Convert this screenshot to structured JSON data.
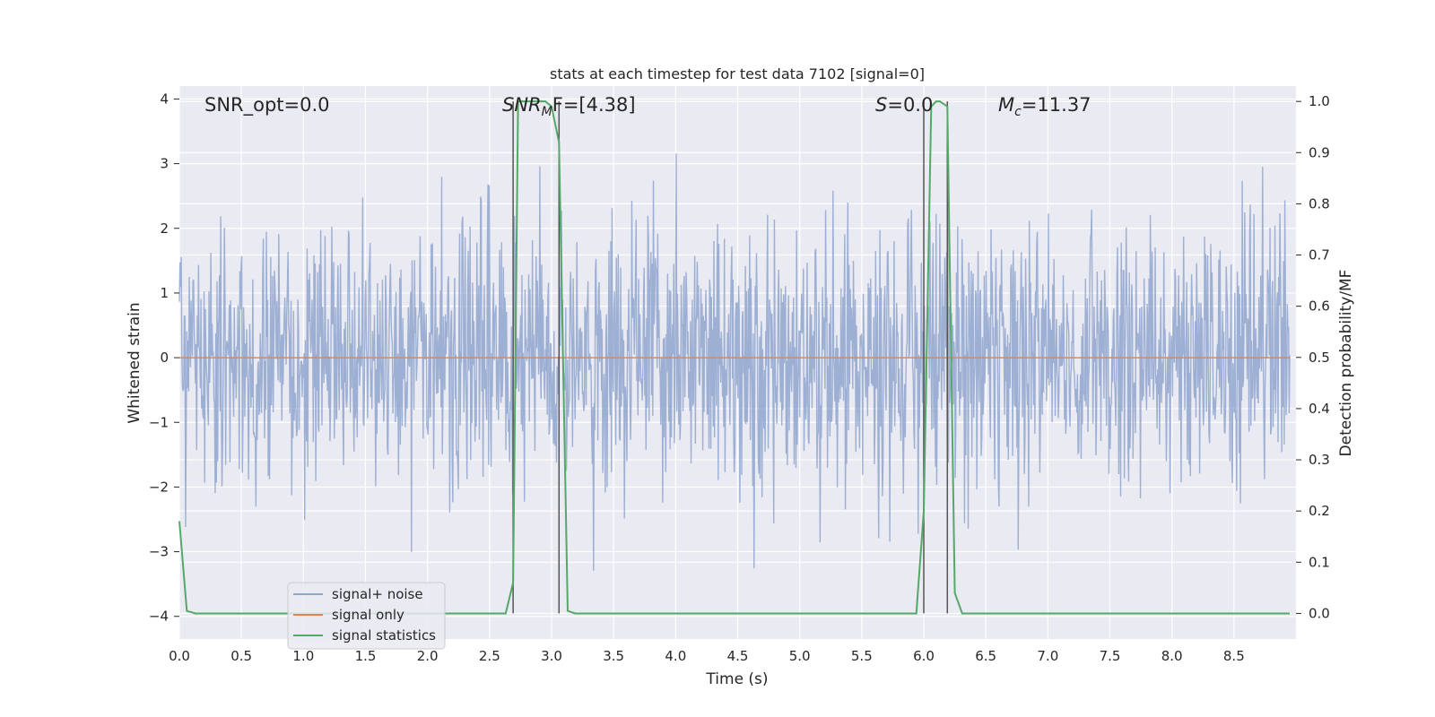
{
  "chart_data": {
    "type": "line",
    "title": "stats at each timestep for test data 7102 [signal=0]",
    "xlabel": "Time (s)",
    "ylabel": "Whitened strain",
    "ylabel_right": "Detection probability/MF",
    "xlim": [
      0,
      9.0
    ],
    "ylim": [
      -4.35,
      4.2
    ],
    "ylim_right": [
      -0.05,
      1.03
    ],
    "x_ticks": [
      "0.0",
      "0.5",
      "1.0",
      "1.5",
      "2.0",
      "2.5",
      "3.0",
      "3.5",
      "4.0",
      "4.5",
      "5.0",
      "5.5",
      "6.0",
      "6.5",
      "7.0",
      "7.5",
      "8.0",
      "8.5"
    ],
    "y_ticks": [
      "4",
      "3",
      "2",
      "1",
      "0",
      "−1",
      "−2",
      "−3",
      "−4"
    ],
    "y_ticks_right": [
      "1.0",
      "0.9",
      "0.8",
      "0.7",
      "0.6",
      "0.5",
      "0.4",
      "0.3",
      "0.2",
      "0.1",
      "0.0"
    ],
    "grid": true,
    "legend_position": "lower-left",
    "annotations": {
      "snr_opt": "SNR_opt=0.0",
      "snr_mf_main": "SNR",
      "snr_mf_sub": "M",
      "snr_mf_rest": "F=[4.38]",
      "s_main": "S",
      "s_rest": "=0.0",
      "mc_main": "M",
      "mc_sub": "c",
      "mc_rest": "=11.37"
    },
    "series": [
      {
        "name": "signal+ noise",
        "color": "#8fa6cf",
        "description_axis": "left",
        "noise_std": 1.05,
        "t_range": [
          0,
          8.95
        ],
        "sample_count": 1800
      },
      {
        "name": "signal only",
        "color": "#dd8452",
        "axis": "left",
        "x": [
          0,
          8.95
        ],
        "y": [
          0,
          0
        ]
      },
      {
        "name": "signal statistics",
        "color": "#55a868",
        "axis": "right",
        "x": [
          0.0,
          0.06,
          0.13,
          0.5,
          1.0,
          2.0,
          2.63,
          2.69,
          2.73,
          2.95,
          3.0,
          3.06,
          3.13,
          3.19,
          4.0,
          5.0,
          5.94,
          6.0,
          6.06,
          6.1,
          6.13,
          6.19,
          6.25,
          6.31,
          7.0,
          8.0,
          8.95
        ],
        "y": [
          0.18,
          0.005,
          0.0,
          0.0,
          0.0,
          0.0,
          0.0,
          0.06,
          1.0,
          1.0,
          0.99,
          0.92,
          0.005,
          0.0,
          0.0,
          0.0,
          0.0,
          0.2,
          0.99,
          1.0,
          1.0,
          0.99,
          0.04,
          0.0,
          0.0,
          0.0,
          0.0
        ]
      }
    ],
    "vertical_markers": [
      2.69,
      3.06,
      6.0,
      6.19
    ]
  }
}
